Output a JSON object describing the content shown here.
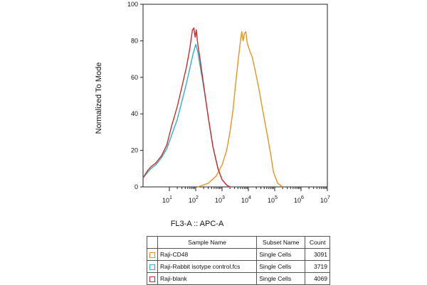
{
  "chart_data": {
    "type": "line",
    "xlabel": "FL3-A :: APC-A",
    "ylabel": "Normalized To Mode",
    "x_scale": "log",
    "xlim": [
      1,
      10000000
    ],
    "ylim": [
      0,
      100
    ],
    "y_ticks": [
      0,
      20,
      40,
      60,
      80,
      100
    ],
    "x_ticks": [
      {
        "base": "10",
        "exp": "1"
      },
      {
        "base": "10",
        "exp": "2"
      },
      {
        "base": "10",
        "exp": "3"
      },
      {
        "base": "10",
        "exp": "4"
      },
      {
        "base": "10",
        "exp": "5"
      },
      {
        "base": "10",
        "exp": "6"
      },
      {
        "base": "10",
        "exp": "7"
      }
    ],
    "grid": false,
    "series": [
      {
        "name": "Raji-CD48",
        "color": "#e8931e",
        "points": [
          [
            120,
            0
          ],
          [
            300,
            2
          ],
          [
            600,
            6
          ],
          [
            1000,
            12
          ],
          [
            1500,
            20
          ],
          [
            2000,
            30
          ],
          [
            2600,
            42
          ],
          [
            3200,
            55
          ],
          [
            4000,
            68
          ],
          [
            5000,
            80
          ],
          [
            5600,
            85
          ],
          [
            6300,
            80
          ],
          [
            7100,
            84
          ],
          [
            8000,
            85
          ],
          [
            9000,
            79
          ],
          [
            11000,
            75
          ],
          [
            14000,
            71
          ],
          [
            18000,
            64
          ],
          [
            25000,
            54
          ],
          [
            35000,
            42
          ],
          [
            50000,
            30
          ],
          [
            70000,
            18
          ],
          [
            90000,
            8
          ],
          [
            130000,
            2
          ],
          [
            200000,
            0
          ]
        ]
      },
      {
        "name": "Raji-Rabbit isotype control.fcs",
        "color": "#2bb0d6",
        "points": [
          [
            1,
            5
          ],
          [
            1.5,
            8
          ],
          [
            2,
            10
          ],
          [
            3,
            12
          ],
          [
            5,
            16
          ],
          [
            8,
            21
          ],
          [
            12,
            28
          ],
          [
            20,
            37
          ],
          [
            30,
            47
          ],
          [
            45,
            57
          ],
          [
            60,
            65
          ],
          [
            80,
            73
          ],
          [
            100,
            78
          ],
          [
            120,
            74
          ],
          [
            140,
            68
          ],
          [
            200,
            55
          ],
          [
            300,
            38
          ],
          [
            450,
            22
          ],
          [
            700,
            10
          ],
          [
            1000,
            4
          ],
          [
            1500,
            1
          ],
          [
            2000,
            0
          ]
        ]
      },
      {
        "name": "Raji-blank",
        "color": "#d42a2a",
        "points": [
          [
            1,
            5
          ],
          [
            1.5,
            9
          ],
          [
            2,
            11
          ],
          [
            3,
            13
          ],
          [
            5,
            17
          ],
          [
            8,
            23
          ],
          [
            12,
            33
          ],
          [
            20,
            44
          ],
          [
            30,
            55
          ],
          [
            45,
            66
          ],
          [
            60,
            76
          ],
          [
            75,
            86
          ],
          [
            85,
            87
          ],
          [
            95,
            82
          ],
          [
            105,
            86
          ],
          [
            120,
            78
          ],
          [
            140,
            72
          ],
          [
            200,
            56
          ],
          [
            300,
            38
          ],
          [
            450,
            22
          ],
          [
            700,
            10
          ],
          [
            1000,
            4
          ],
          [
            1500,
            1
          ],
          [
            2000,
            0
          ]
        ]
      }
    ]
  },
  "legend_table": {
    "headers": [
      "",
      "Sample Name",
      "Subset Name",
      "Count"
    ],
    "rows": [
      {
        "sample": "Raji-CD48",
        "subset": "Single Cells",
        "count": "3091",
        "color": "#e8931e"
      },
      {
        "sample": "Raji-Rabbit isotype control.fcs",
        "subset": "Single Cells",
        "count": "3719",
        "color": "#2bb0d6"
      },
      {
        "sample": "Raji-blank",
        "subset": "Single Cells",
        "count": "4069",
        "color": "#d42a2a"
      }
    ]
  }
}
